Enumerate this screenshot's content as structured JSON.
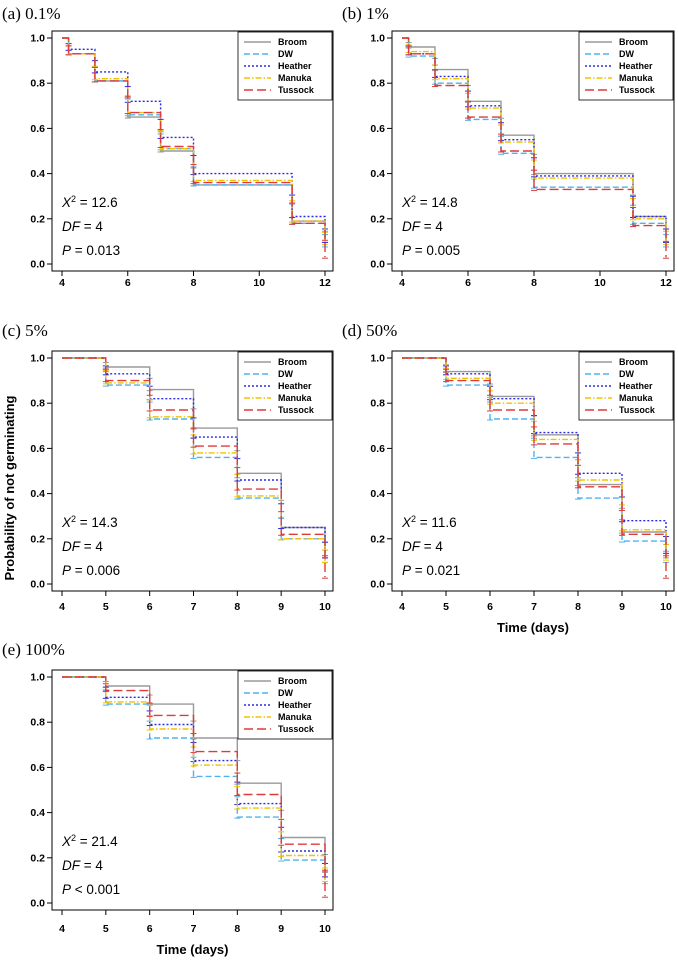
{
  "figure": {
    "y_axis_title": "Probability of not germinating",
    "x_axis_title": "Time (days)"
  },
  "series_styles": {
    "Broom": {
      "color": "#9a9a9a",
      "dash": ""
    },
    "DW": {
      "color": "#4db3f0",
      "dash": "6,3"
    },
    "Heather": {
      "color": "#2b2be6",
      "dash": "2,2"
    },
    "Manuka": {
      "color": "#f2c200",
      "dash": "6,2,1.5,2"
    },
    "Tussock": {
      "color": "#e03a3a",
      "dash": "9,4"
    }
  },
  "legend_labels": [
    "Broom",
    "DW",
    "Heather",
    "Manuka",
    "Tussock"
  ],
  "chart_data": [
    {
      "type": "line",
      "title": "(a) 0.1%",
      "xlabel": "",
      "ylabel": "",
      "xlim": [
        4,
        12
      ],
      "ylim": [
        0,
        1
      ],
      "xticks": [
        "4",
        "6",
        "8",
        "10",
        "12"
      ],
      "yticks": [
        "0.0",
        "0.2",
        "0.4",
        "0.6",
        "0.8",
        "1.0"
      ],
      "stats": {
        "chi2": "12.6",
        "df": "4",
        "p_rel": "=",
        "p": "0.013"
      },
      "series": [
        {
          "name": "Broom",
          "steps": [
            [
              4,
              1.0
            ],
            [
              4.2,
              0.93
            ],
            [
              5,
              0.81
            ],
            [
              6,
              0.65
            ],
            [
              7,
              0.5
            ],
            [
              8,
              0.35
            ],
            [
              11,
              0.19
            ],
            [
              12,
              0.1
            ]
          ]
        },
        {
          "name": "DW",
          "steps": [
            [
              4,
              1.0
            ],
            [
              4.2,
              0.93
            ],
            [
              5,
              0.81
            ],
            [
              6,
              0.66
            ],
            [
              7,
              0.51
            ],
            [
              8,
              0.35
            ],
            [
              11,
              0.18
            ],
            [
              12,
              0.08
            ]
          ]
        },
        {
          "name": "Heather",
          "steps": [
            [
              4,
              1.0
            ],
            [
              4.2,
              0.95
            ],
            [
              5,
              0.85
            ],
            [
              6,
              0.72
            ],
            [
              7,
              0.56
            ],
            [
              8,
              0.4
            ],
            [
              11,
              0.21
            ],
            [
              12,
              0.1
            ]
          ]
        },
        {
          "name": "Manuka",
          "steps": [
            [
              4,
              1.0
            ],
            [
              4.2,
              0.93
            ],
            [
              5,
              0.82
            ],
            [
              6,
              0.67
            ],
            [
              7,
              0.51
            ],
            [
              8,
              0.37
            ],
            [
              11,
              0.19
            ],
            [
              12,
              0.09
            ]
          ]
        },
        {
          "name": "Tussock",
          "steps": [
            [
              4,
              1.0
            ],
            [
              4.2,
              0.93
            ],
            [
              5,
              0.81
            ],
            [
              6,
              0.67
            ],
            [
              7,
              0.52
            ],
            [
              8,
              0.36
            ],
            [
              11,
              0.18
            ],
            [
              12,
              0.03
            ]
          ]
        }
      ]
    },
    {
      "type": "line",
      "title": "(b) 1%",
      "xlabel": "",
      "ylabel": "",
      "xlim": [
        4,
        12
      ],
      "ylim": [
        0,
        1
      ],
      "xticks": [
        "4",
        "6",
        "8",
        "10",
        "12"
      ],
      "yticks": [
        "0.0",
        "0.2",
        "0.4",
        "0.6",
        "0.8",
        "1.0"
      ],
      "stats": {
        "chi2": "14.8",
        "df": "4",
        "p_rel": "=",
        "p": "0.005"
      },
      "series": [
        {
          "name": "Broom",
          "steps": [
            [
              4,
              1.0
            ],
            [
              4.2,
              0.96
            ],
            [
              5,
              0.86
            ],
            [
              6,
              0.72
            ],
            [
              7,
              0.57
            ],
            [
              8,
              0.4
            ],
            [
              11,
              0.21
            ],
            [
              12,
              0.1
            ]
          ]
        },
        {
          "name": "DW",
          "steps": [
            [
              4,
              1.0
            ],
            [
              4.2,
              0.92
            ],
            [
              5,
              0.8
            ],
            [
              6,
              0.64
            ],
            [
              7,
              0.49
            ],
            [
              8,
              0.34
            ],
            [
              11,
              0.18
            ],
            [
              12,
              0.08
            ]
          ]
        },
        {
          "name": "Heather",
          "steps": [
            [
              4,
              1.0
            ],
            [
              4.2,
              0.93
            ],
            [
              5,
              0.83
            ],
            [
              6,
              0.7
            ],
            [
              7,
              0.55
            ],
            [
              8,
              0.39
            ],
            [
              11,
              0.21
            ],
            [
              12,
              0.1
            ]
          ]
        },
        {
          "name": "Manuka",
          "steps": [
            [
              4,
              1.0
            ],
            [
              4.2,
              0.94
            ],
            [
              5,
              0.82
            ],
            [
              6,
              0.69
            ],
            [
              7,
              0.54
            ],
            [
              8,
              0.38
            ],
            [
              11,
              0.2
            ],
            [
              12,
              0.09
            ]
          ]
        },
        {
          "name": "Tussock",
          "steps": [
            [
              4,
              1.0
            ],
            [
              4.2,
              0.93
            ],
            [
              5,
              0.79
            ],
            [
              6,
              0.65
            ],
            [
              7,
              0.5
            ],
            [
              8,
              0.33
            ],
            [
              11,
              0.17
            ],
            [
              12,
              0.03
            ]
          ]
        }
      ]
    },
    {
      "type": "line",
      "title": "(c) 5%",
      "xlabel": "",
      "ylabel": "",
      "xlim": [
        4,
        10
      ],
      "ylim": [
        0,
        1
      ],
      "xticks": [
        "4",
        "5",
        "6",
        "7",
        "8",
        "9",
        "10"
      ],
      "yticks": [
        "0.0",
        "0.2",
        "0.4",
        "0.6",
        "0.8",
        "1.0"
      ],
      "stats": {
        "chi2": "14.3",
        "df": "4",
        "p_rel": "=",
        "p": "0.006"
      },
      "series": [
        {
          "name": "Broom",
          "steps": [
            [
              4,
              1.0
            ],
            [
              5,
              0.96
            ],
            [
              6,
              0.86
            ],
            [
              7,
              0.69
            ],
            [
              8,
              0.49
            ],
            [
              9,
              0.25
            ],
            [
              10,
              0.12
            ]
          ]
        },
        {
          "name": "DW",
          "steps": [
            [
              4,
              1.0
            ],
            [
              5,
              0.88
            ],
            [
              6,
              0.73
            ],
            [
              7,
              0.56
            ],
            [
              8,
              0.38
            ],
            [
              9,
              0.2
            ],
            [
              10,
              0.1
            ]
          ]
        },
        {
          "name": "Heather",
          "steps": [
            [
              4,
              1.0
            ],
            [
              5,
              0.93
            ],
            [
              6,
              0.82
            ],
            [
              7,
              0.65
            ],
            [
              8,
              0.46
            ],
            [
              9,
              0.25
            ],
            [
              10,
              0.12
            ]
          ]
        },
        {
          "name": "Manuka",
          "steps": [
            [
              4,
              1.0
            ],
            [
              5,
              0.89
            ],
            [
              6,
              0.74
            ],
            [
              7,
              0.58
            ],
            [
              8,
              0.39
            ],
            [
              9,
              0.2
            ],
            [
              10,
              0.1
            ]
          ]
        },
        {
          "name": "Tussock",
          "steps": [
            [
              4,
              1.0
            ],
            [
              5,
              0.9
            ],
            [
              6,
              0.77
            ],
            [
              7,
              0.61
            ],
            [
              8,
              0.42
            ],
            [
              9,
              0.22
            ],
            [
              10,
              0.03
            ]
          ]
        }
      ]
    },
    {
      "type": "line",
      "title": "(d) 50%",
      "xlabel": "Time (days)",
      "ylabel": "",
      "xlim": [
        4,
        10
      ],
      "ylim": [
        0,
        1
      ],
      "xticks": [
        "4",
        "5",
        "6",
        "7",
        "8",
        "9",
        "10"
      ],
      "yticks": [
        "0.0",
        "0.2",
        "0.4",
        "0.6",
        "0.8",
        "1.0"
      ],
      "stats": {
        "chi2": "11.6",
        "df": "4",
        "p_rel": "=",
        "p": "0.021"
      },
      "series": [
        {
          "name": "Broom",
          "steps": [
            [
              4,
              1.0
            ],
            [
              5,
              0.94
            ],
            [
              6,
              0.83
            ],
            [
              7,
              0.66
            ],
            [
              8,
              0.44
            ],
            [
              9,
              0.23
            ],
            [
              10,
              0.12
            ]
          ]
        },
        {
          "name": "DW",
          "steps": [
            [
              4,
              1.0
            ],
            [
              5,
              0.88
            ],
            [
              6,
              0.73
            ],
            [
              7,
              0.56
            ],
            [
              8,
              0.38
            ],
            [
              9,
              0.19
            ],
            [
              10,
              0.1
            ]
          ]
        },
        {
          "name": "Heather",
          "steps": [
            [
              4,
              1.0
            ],
            [
              5,
              0.93
            ],
            [
              6,
              0.82
            ],
            [
              7,
              0.67
            ],
            [
              8,
              0.49
            ],
            [
              9,
              0.28
            ],
            [
              10,
              0.14
            ]
          ]
        },
        {
          "name": "Manuka",
          "steps": [
            [
              4,
              1.0
            ],
            [
              5,
              0.91
            ],
            [
              6,
              0.8
            ],
            [
              7,
              0.64
            ],
            [
              8,
              0.46
            ],
            [
              9,
              0.24
            ],
            [
              10,
              0.11
            ]
          ]
        },
        {
          "name": "Tussock",
          "steps": [
            [
              4,
              1.0
            ],
            [
              5,
              0.9
            ],
            [
              6,
              0.77
            ],
            [
              7,
              0.62
            ],
            [
              8,
              0.43
            ],
            [
              9,
              0.22
            ],
            [
              10,
              0.03
            ]
          ]
        }
      ]
    },
    {
      "type": "line",
      "title": "(e) 100%",
      "xlabel": "Time (days)",
      "ylabel": "",
      "xlim": [
        4,
        10
      ],
      "ylim": [
        0,
        1
      ],
      "xticks": [
        "4",
        "5",
        "6",
        "7",
        "8",
        "9",
        "10"
      ],
      "yticks": [
        "0.0",
        "0.2",
        "0.4",
        "0.6",
        "0.8",
        "1.0"
      ],
      "stats": {
        "chi2": "21.4",
        "df": "4",
        "p_rel": "<",
        "p": "0.001"
      },
      "series": [
        {
          "name": "Broom",
          "steps": [
            [
              4,
              1.0
            ],
            [
              5,
              0.96
            ],
            [
              6,
              0.88
            ],
            [
              7,
              0.73
            ],
            [
              8,
              0.53
            ],
            [
              9,
              0.29
            ],
            [
              10,
              0.14
            ]
          ]
        },
        {
          "name": "DW",
          "steps": [
            [
              4,
              1.0
            ],
            [
              5,
              0.88
            ],
            [
              6,
              0.73
            ],
            [
              7,
              0.56
            ],
            [
              8,
              0.38
            ],
            [
              9,
              0.19
            ],
            [
              10,
              0.09
            ]
          ]
        },
        {
          "name": "Heather",
          "steps": [
            [
              4,
              1.0
            ],
            [
              5,
              0.91
            ],
            [
              6,
              0.79
            ],
            [
              7,
              0.63
            ],
            [
              8,
              0.44
            ],
            [
              9,
              0.23
            ],
            [
              10,
              0.12
            ]
          ]
        },
        {
          "name": "Manuka",
          "steps": [
            [
              4,
              1.0
            ],
            [
              5,
              0.89
            ],
            [
              6,
              0.77
            ],
            [
              7,
              0.61
            ],
            [
              8,
              0.42
            ],
            [
              9,
              0.21
            ],
            [
              10,
              0.1
            ]
          ]
        },
        {
          "name": "Tussock",
          "steps": [
            [
              4,
              1.0
            ],
            [
              5,
              0.94
            ],
            [
              6,
              0.83
            ],
            [
              7,
              0.67
            ],
            [
              8,
              0.48
            ],
            [
              9,
              0.26
            ],
            [
              10,
              0.03
            ]
          ]
        }
      ]
    }
  ]
}
